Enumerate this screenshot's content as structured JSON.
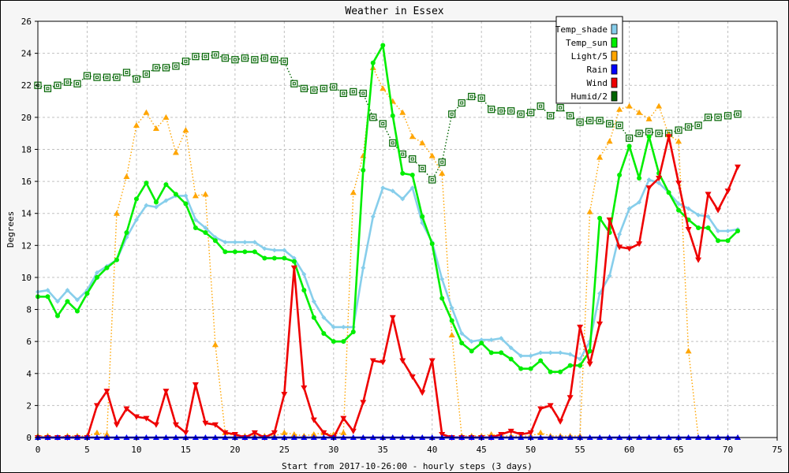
{
  "chart_data": {
    "type": "line",
    "title": "Weather in Essex",
    "xlabel": "Start from 2017-10-26:00 - hourly steps (3 days)",
    "ylabel": "Degrees",
    "xlim": [
      0,
      75
    ],
    "ylim": [
      0,
      26
    ],
    "xticks": [
      0,
      5,
      10,
      15,
      20,
      25,
      30,
      35,
      40,
      45,
      50,
      55,
      60,
      65,
      70,
      75
    ],
    "yticks": [
      0,
      2,
      4,
      6,
      8,
      10,
      12,
      14,
      16,
      18,
      20,
      22,
      24,
      26
    ],
    "grid": true,
    "legend_position": "top-right",
    "x": [
      0,
      1,
      2,
      3,
      4,
      5,
      6,
      7,
      8,
      9,
      10,
      11,
      12,
      13,
      14,
      15,
      16,
      17,
      18,
      19,
      20,
      21,
      22,
      23,
      24,
      25,
      26,
      27,
      28,
      29,
      30,
      31,
      32,
      33,
      34,
      35,
      36,
      37,
      38,
      39,
      40,
      41,
      42,
      43,
      44,
      45,
      46,
      47,
      48,
      49,
      50,
      51,
      52,
      53,
      54,
      55,
      56,
      57,
      58,
      59,
      60,
      61,
      62,
      63,
      64,
      65,
      66,
      67,
      68,
      69,
      70,
      71
    ],
    "series": [
      {
        "name": "Temp_shade",
        "color": "#87ceeb",
        "style": "solid",
        "marker": "diamond",
        "values": [
          9.1,
          9.2,
          8.5,
          9.2,
          8.6,
          9.2,
          10.3,
          10.7,
          11.1,
          12.5,
          13.6,
          14.5,
          14.4,
          14.8,
          15.1,
          15.1,
          13.6,
          13.1,
          12.5,
          12.2,
          12.2,
          12.2,
          12.2,
          11.8,
          11.7,
          11.7,
          11.2,
          10.2,
          8.5,
          7.5,
          6.9,
          6.9,
          6.9,
          10.6,
          13.8,
          15.6,
          15.4,
          14.9,
          15.6,
          13.4,
          12.2,
          9.9,
          8.1,
          6.5,
          6.0,
          6.1,
          6.1,
          6.2,
          5.6,
          5.1,
          5.1,
          5.3,
          5.3,
          5.3,
          5.2,
          4.9,
          6.0,
          9.0,
          10.1,
          12.7,
          14.3,
          14.7,
          16.1,
          15.9,
          15.3,
          14.6,
          14.3,
          13.9,
          13.8,
          12.9,
          12.9,
          13.0
        ]
      },
      {
        "name": "Temp_sun",
        "color": "#00ee00",
        "style": "solid",
        "marker": "circle",
        "values": [
          8.8,
          8.8,
          7.6,
          8.5,
          7.9,
          9.0,
          10.0,
          10.6,
          11.1,
          12.8,
          14.9,
          15.9,
          14.7,
          15.8,
          15.2,
          14.6,
          13.1,
          12.8,
          12.3,
          11.6,
          11.6,
          11.6,
          11.6,
          11.2,
          11.2,
          11.2,
          11.0,
          9.2,
          7.5,
          6.5,
          6.0,
          6.0,
          6.6,
          16.7,
          23.4,
          24.5,
          20.1,
          16.5,
          16.4,
          13.8,
          12.1,
          8.7,
          7.3,
          5.9,
          5.4,
          5.9,
          5.3,
          5.3,
          4.9,
          4.3,
          4.3,
          4.8,
          4.1,
          4.1,
          4.5,
          4.5,
          5.4,
          13.7,
          12.8,
          16.4,
          18.2,
          16.2,
          18.8,
          16.5,
          15.3,
          14.2,
          13.6,
          13.1,
          13.1,
          12.3,
          12.3,
          12.9
        ]
      },
      {
        "name": "Light/5",
        "color": "#ffa500",
        "style": "dotted",
        "marker": "triangle",
        "values": [
          0.1,
          0.1,
          0.0,
          0.1,
          0.1,
          0.1,
          0.3,
          0.2,
          14.0,
          16.3,
          19.5,
          20.3,
          19.3,
          20.0,
          17.8,
          19.2,
          15.1,
          15.2,
          5.8,
          0.3,
          0.1,
          0.1,
          0.1,
          0.1,
          0.1,
          0.3,
          0.2,
          0.1,
          0.2,
          0.3,
          0.2,
          0.3,
          15.3,
          17.6,
          23.1,
          21.8,
          21.0,
          20.3,
          18.8,
          18.4,
          17.6,
          16.5,
          6.4,
          0.1,
          0.1,
          0.1,
          0.2,
          0.1,
          0.1,
          0.1,
          0.1,
          0.3,
          0.1,
          0.1,
          0.1,
          0.1,
          14.1,
          17.5,
          18.5,
          20.5,
          20.7,
          20.3,
          19.9,
          20.7,
          18.9,
          18.5,
          5.4,
          0.0,
          0.0,
          0.0,
          0.0,
          0.0
        ]
      },
      {
        "name": "Rain",
        "color": "#0000ff",
        "style": "solid",
        "marker": "triangle-up",
        "values": [
          0,
          0,
          0,
          0,
          0,
          0,
          0,
          0,
          0,
          0,
          0,
          0,
          0,
          0,
          0,
          0,
          0,
          0,
          0,
          0,
          0,
          0,
          0,
          0,
          0,
          0,
          0,
          0,
          0,
          0,
          0,
          0,
          0,
          0,
          0,
          0,
          0,
          0,
          0,
          0,
          0,
          0,
          0,
          0,
          0,
          0,
          0,
          0,
          0,
          0,
          0,
          0,
          0,
          0,
          0,
          0,
          0,
          0,
          0,
          0,
          0,
          0,
          0,
          0,
          0,
          0,
          0,
          0,
          0,
          0,
          0,
          0
        ]
      },
      {
        "name": "Wind",
        "color": "#ee0000",
        "style": "solid",
        "marker": "triangle-down",
        "values": [
          0.0,
          0.0,
          0.0,
          0.0,
          0.0,
          0.0,
          2.0,
          2.9,
          0.8,
          1.8,
          1.3,
          1.2,
          0.8,
          2.9,
          0.8,
          0.3,
          3.3,
          0.9,
          0.8,
          0.3,
          0.2,
          0.0,
          0.3,
          0.0,
          0.3,
          2.7,
          10.6,
          3.1,
          1.1,
          0.3,
          0.0,
          1.2,
          0.4,
          2.2,
          4.8,
          4.7,
          7.5,
          4.8,
          3.8,
          2.8,
          4.8,
          0.2,
          0.0,
          0.0,
          0.0,
          0.0,
          0.0,
          0.2,
          0.4,
          0.2,
          0.3,
          1.8,
          2.0,
          1.0,
          2.5,
          6.9,
          4.6,
          7.1,
          13.6,
          11.9,
          11.8,
          12.1,
          15.6,
          16.2,
          18.8,
          15.9,
          13.0,
          11.1,
          15.2,
          14.2,
          15.4,
          16.9
        ]
      },
      {
        "name": "Humid/2",
        "color": "#006400",
        "style": "dotted",
        "marker": "square",
        "values": [
          22.0,
          21.8,
          22.0,
          22.2,
          22.1,
          22.6,
          22.5,
          22.5,
          22.5,
          22.8,
          22.4,
          22.7,
          23.1,
          23.1,
          23.2,
          23.5,
          23.8,
          23.8,
          23.9,
          23.7,
          23.6,
          23.7,
          23.6,
          23.7,
          23.6,
          23.5,
          22.1,
          21.8,
          21.7,
          21.8,
          21.9,
          21.5,
          21.6,
          21.5,
          20.0,
          19.6,
          18.4,
          17.7,
          17.4,
          16.8,
          16.1,
          17.2,
          20.2,
          20.9,
          21.3,
          21.2,
          20.5,
          20.4,
          20.4,
          20.2,
          20.3,
          20.7,
          20.1,
          20.6,
          20.1,
          19.7,
          19.8,
          19.8,
          19.6,
          19.5,
          18.7,
          19.0,
          19.1,
          19.0,
          19.0,
          19.2,
          19.4,
          19.5,
          20.0,
          20.0,
          20.1,
          20.2
        ]
      }
    ]
  }
}
